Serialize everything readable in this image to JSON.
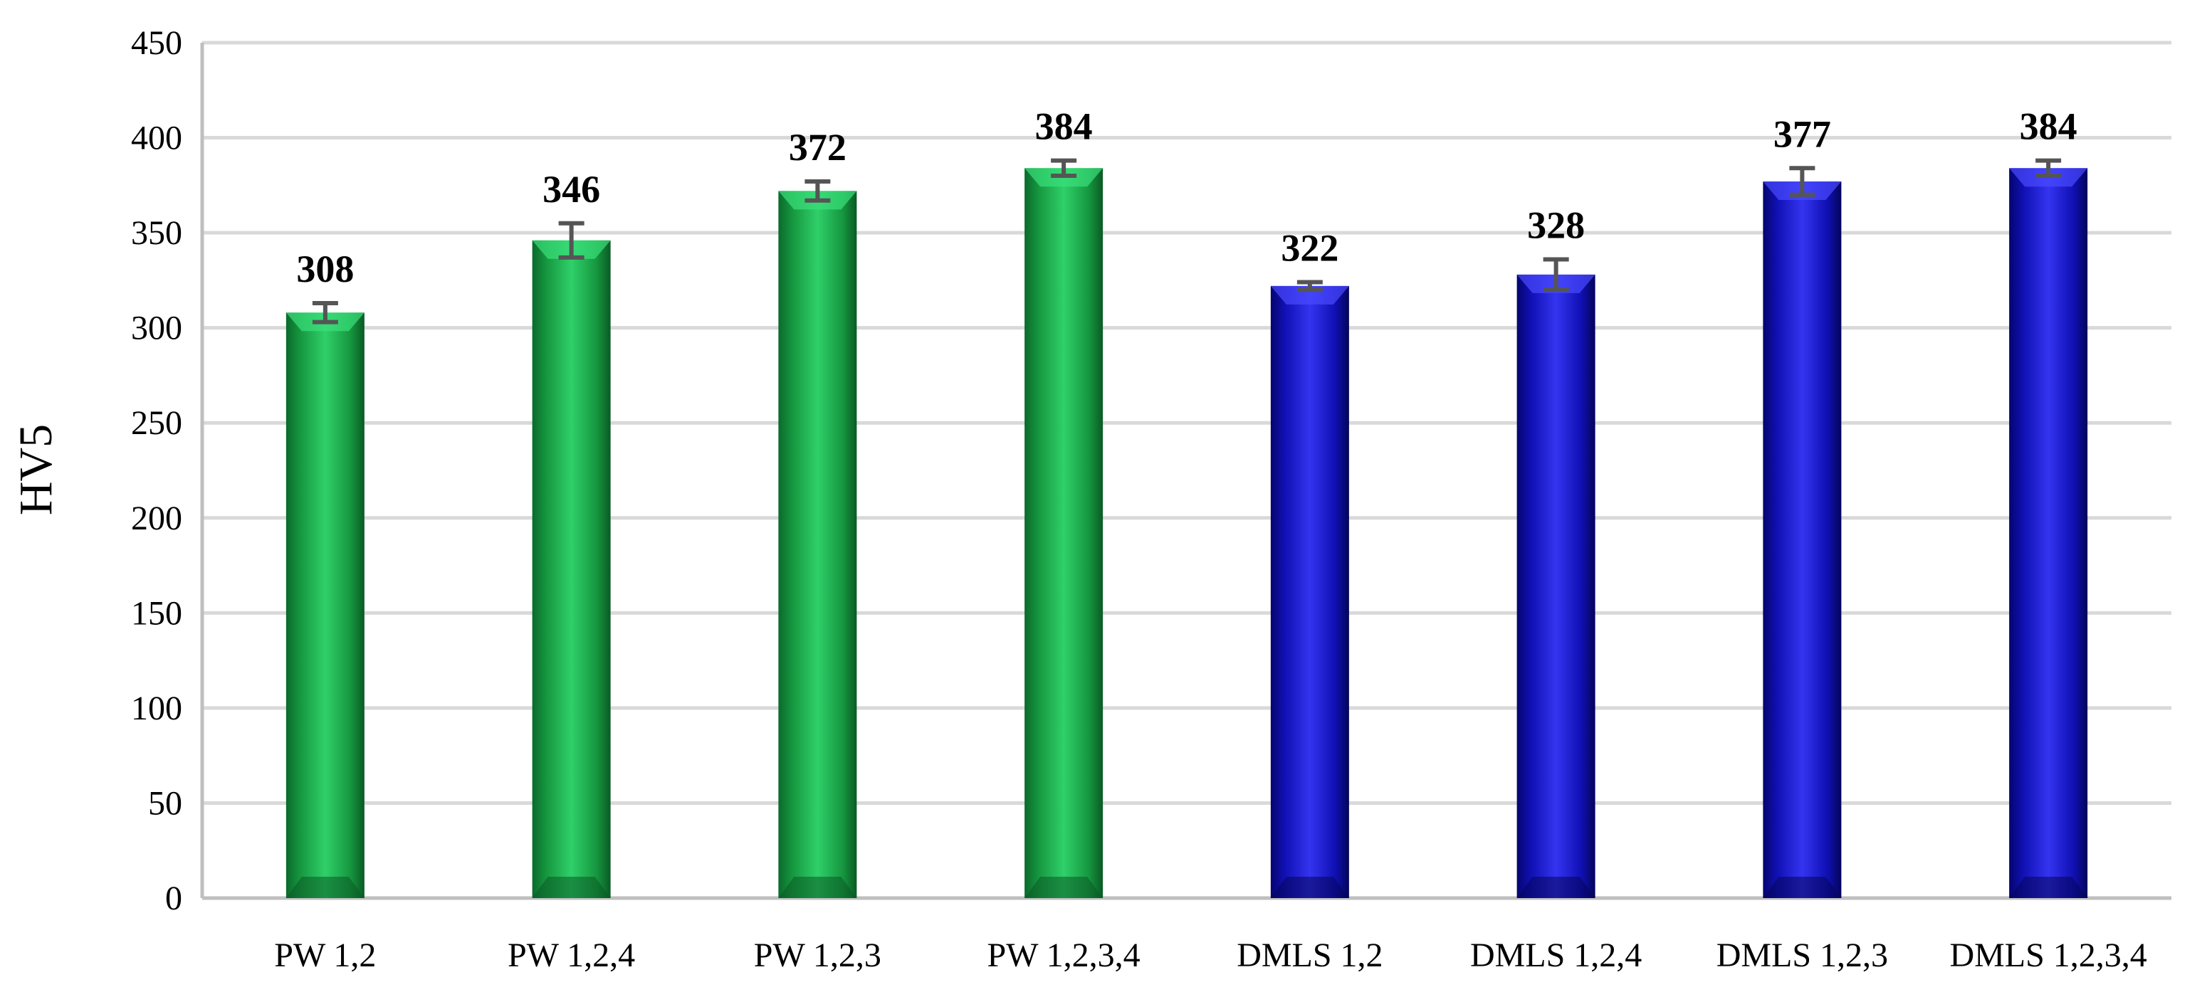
{
  "chart_data": {
    "type": "bar",
    "title": "",
    "xlabel": "",
    "ylabel": "HV5",
    "ylim": [
      0,
      450
    ],
    "yticks": [
      0,
      50,
      100,
      150,
      200,
      250,
      300,
      350,
      400,
      450
    ],
    "grid": true,
    "legend": "none",
    "categories": [
      "PW 1,2",
      "PW 1,2,4",
      "PW 1,2,3",
      "PW 1,2,3,4",
      "DMLS 1,2",
      "DMLS 1,2,4",
      "DMLS 1,2,3",
      "DMLS 1,2,3,4"
    ],
    "values": [
      308,
      346,
      372,
      384,
      322,
      328,
      377,
      384
    ],
    "value_labels": [
      "308",
      "346",
      "372",
      "384",
      "322",
      "328",
      "377",
      "384"
    ],
    "error": [
      5,
      9,
      5,
      4,
      2,
      8,
      7,
      4
    ],
    "bar_colors": [
      "#1fae4b",
      "#1fae4b",
      "#1fae4b",
      "#1fae4b",
      "#1414c8",
      "#1414c8",
      "#1414c8",
      "#1414c8"
    ],
    "error_bar_color": "#555555",
    "grid_color": "#d9d9d9"
  }
}
